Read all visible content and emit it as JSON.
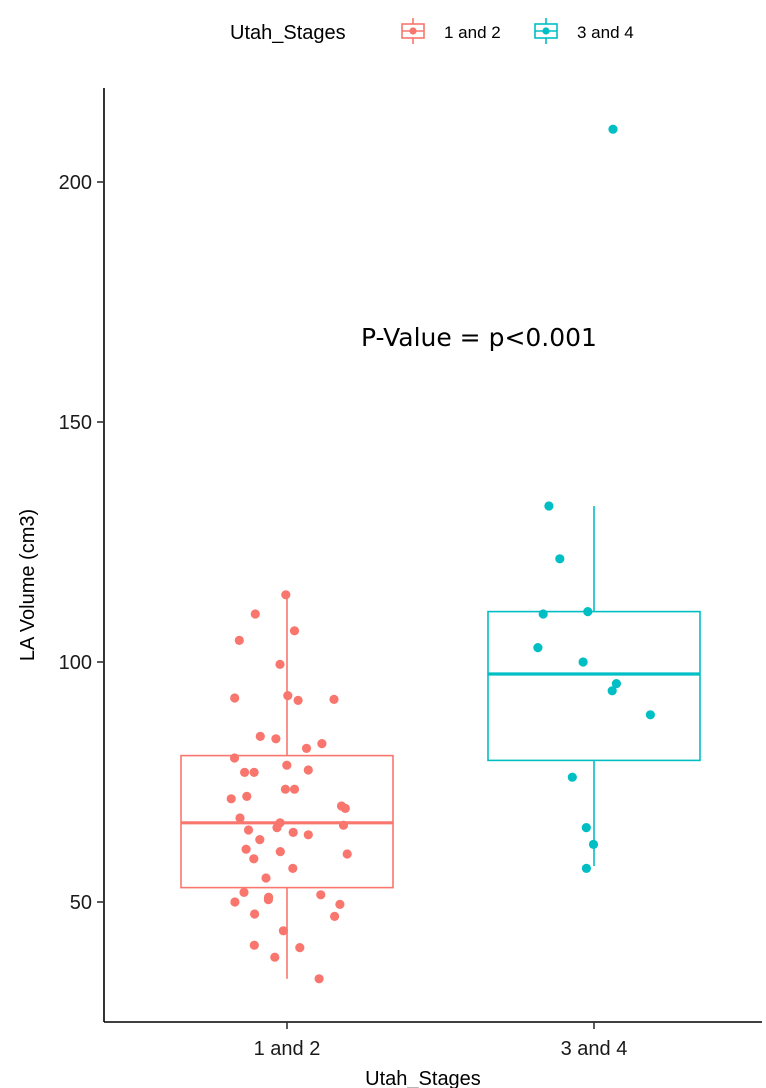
{
  "chart_data": {
    "type": "box",
    "xlabel": "Utah_Stages",
    "ylabel": "LA Volume (cm3)",
    "ylim": [
      26,
      218
    ],
    "yticks": [
      50,
      100,
      150,
      200
    ],
    "categories": [
      "1 and 2",
      "3 and 4"
    ],
    "legend": {
      "title": "Utah_Stages",
      "position": "top",
      "entries": [
        "1 and 2",
        "3 and 4"
      ]
    },
    "annotation": "P-Value = p<0.001",
    "grid": false,
    "colors": {
      "1 and 2": "#F8766D",
      "3 and 4": "#00BFC4"
    },
    "boxes": [
      {
        "category": "1 and 2",
        "min": 34,
        "q1": 53,
        "median": 66.5,
        "q3": 80.5,
        "max": 114
      },
      {
        "category": "3 and 4",
        "min": 57.5,
        "q1": 79.5,
        "median": 97.5,
        "q3": 110.5,
        "max": 132.5
      }
    ],
    "points": [
      {
        "category": "1 and 2",
        "values": [
          114,
          106.5,
          104.5,
          110,
          99.5,
          93,
          92.5,
          92.2,
          92,
          84,
          84.5,
          83,
          82,
          80,
          78.5,
          77,
          77.5,
          77,
          73.5,
          73.5,
          72,
          71.5,
          70,
          69.5,
          67.5,
          66.5,
          66,
          65,
          65.5,
          64.5,
          64,
          63,
          61,
          60,
          60.5,
          59,
          57,
          55,
          52,
          51.5,
          51,
          50.5,
          50,
          49.5,
          47.5,
          47,
          44,
          41,
          40.5,
          38.5,
          34
        ]
      },
      {
        "category": "3 and 4",
        "values": [
          211,
          132.5,
          121.5,
          110.5,
          110,
          103,
          100,
          95.5,
          94,
          89,
          76,
          65.5,
          62,
          57
        ]
      }
    ]
  }
}
